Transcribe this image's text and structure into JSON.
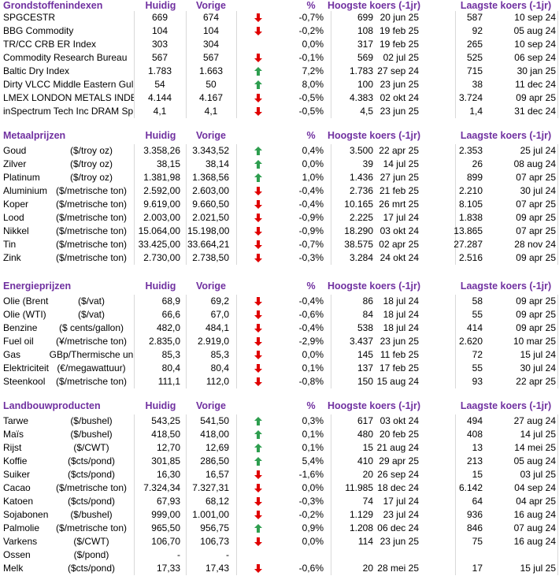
{
  "sections": [
    {
      "title": "Grondstoffenindexen",
      "headers": {
        "current": "Huidig",
        "previous": "Vorige",
        "pct": "%",
        "high": "Hoogste koers (-1jr)",
        "low": "Laagste koers (-1jr)"
      },
      "rows": [
        {
          "name": "SPGCESTR",
          "current": "669",
          "previous": "674",
          "arrow": "down",
          "pct": "-0,7%",
          "high": "699",
          "high_date": "20 jun 25",
          "low": "587",
          "low_date": "10 sep 24"
        },
        {
          "name": "BBG Commodity",
          "current": "104",
          "previous": "104",
          "arrow": "down",
          "pct": "-0,2%",
          "high": "108",
          "high_date": "19 feb 25",
          "low": "92",
          "low_date": "05 aug 24"
        },
        {
          "name": "TR/CC CRB ER Index",
          "current": "303",
          "previous": "304",
          "arrow": null,
          "pct": "0,0%",
          "high": "317",
          "high_date": "19 feb 25",
          "low": "265",
          "low_date": "10 sep 24"
        },
        {
          "name": "Commodity Research Bureau",
          "current": "567",
          "previous": "567",
          "arrow": "down",
          "pct": "-0,1%",
          "high": "569",
          "high_date": "02 jul 25",
          "low": "525",
          "low_date": "06 sep 24"
        },
        {
          "name": "Baltic Dry Index",
          "current": "1.783",
          "previous": "1.663",
          "arrow": "up",
          "pct": "7,2%",
          "high": "1.783",
          "high_date": "27 sep 24",
          "low": "715",
          "low_date": "30 jan 25"
        },
        {
          "name": "Dirty VLCC Middle Eastern Gul",
          "current": "54",
          "previous": "50",
          "arrow": "up",
          "pct": "8,0%",
          "high": "100",
          "high_date": "23 jun 25",
          "low": "38",
          "low_date": "11 dec 24"
        },
        {
          "name": "LMEX LONDON METALS INDE",
          "current": "4.144",
          "previous": "4.167",
          "arrow": "down",
          "pct": "-0,5%",
          "high": "4.383",
          "high_date": "02 okt 24",
          "low": "3.724",
          "low_date": "09 apr 25"
        },
        {
          "name": "inSpectrum Tech Inc DRAM Sp",
          "current": "4,1",
          "previous": "4,1",
          "arrow": "down",
          "pct": "-0,5%",
          "high": "4,5",
          "high_date": "23 jun 25",
          "low": "1,4",
          "low_date": "31 dec 24"
        }
      ]
    },
    {
      "title": "Metaalprijzen",
      "headers": {
        "current": "Huidig",
        "previous": "Vorige",
        "pct": "%",
        "high": "Hoogste koers (-1jr)",
        "low": "Laagste koers (-1jr)"
      },
      "rows": [
        {
          "name": "Goud",
          "unit": "($/troy oz)",
          "current": "3.358,26",
          "previous": "3.343,52",
          "arrow": "up",
          "pct": "0,4%",
          "high": "3.500",
          "high_date": "22 apr 25",
          "low": "2.353",
          "low_date": "25 jul 24"
        },
        {
          "name": "Zilver",
          "unit": "($/troy oz)",
          "current": "38,15",
          "previous": "38,14",
          "arrow": "up",
          "pct": "0,0%",
          "high": "39",
          "high_date": "14 jul 25",
          "low": "26",
          "low_date": "08 aug 24"
        },
        {
          "name": "Platinum",
          "unit": "($/troy oz)",
          "current": "1.381,98",
          "previous": "1.368,56",
          "arrow": "up",
          "pct": "1,0%",
          "high": "1.436",
          "high_date": "27 jun 25",
          "low": "899",
          "low_date": "07 apr 25"
        },
        {
          "name": "Aluminium",
          "unit": "($/metrische ton)",
          "current": "2.592,00",
          "previous": "2.603,00",
          "arrow": "down",
          "pct": "-0,4%",
          "high": "2.736",
          "high_date": "21 feb 25",
          "low": "2.210",
          "low_date": "30 jul 24"
        },
        {
          "name": "Koper",
          "unit": "($/metrische ton)",
          "current": "9.619,00",
          "previous": "9.660,50",
          "arrow": "down",
          "pct": "-0,4%",
          "high": "10.165",
          "high_date": "26 mrt 25",
          "low": "8.105",
          "low_date": "07 apr 25"
        },
        {
          "name": "Lood",
          "unit": "($/metrische ton)",
          "current": "2.003,00",
          "previous": "2.021,50",
          "arrow": "down",
          "pct": "-0,9%",
          "high": "2.225",
          "high_date": "17 jul 24",
          "low": "1.838",
          "low_date": "09 apr 25"
        },
        {
          "name": "Nikkel",
          "unit": "($/metrische ton)",
          "current": "15.064,00",
          "previous": "15.198,00",
          "arrow": "down",
          "pct": "-0,9%",
          "high": "18.290",
          "high_date": "03 okt 24",
          "low": "13.865",
          "low_date": "07 apr 25"
        },
        {
          "name": "Tin",
          "unit": "($/metrische ton)",
          "current": "33.425,00",
          "previous": "33.664,21",
          "arrow": "down",
          "pct": "-0,7%",
          "high": "38.575",
          "high_date": "02 apr 25",
          "low": "27.287",
          "low_date": "28 nov 24"
        },
        {
          "name": "Zink",
          "unit": "($/metrische ton)",
          "current": "2.730,00",
          "previous": "2.738,50",
          "arrow": "down",
          "pct": "-0,3%",
          "high": "3.284",
          "high_date": "24 okt 24",
          "low": "2.516",
          "low_date": "09 apr 25"
        }
      ]
    },
    {
      "title": "Energieprijzen",
      "headers": {
        "current": "Huidig",
        "previous": "Vorige",
        "pct": "%",
        "high": "Hoogste koers (-1jr)",
        "low": "Laagste koers (-1jr)"
      },
      "rows": [
        {
          "name": "Olie (Brent",
          "unit": "($/vat)",
          "current": "68,9",
          "previous": "69,2",
          "arrow": "down",
          "pct": "-0,4%",
          "high": "86",
          "high_date": "18 jul 24",
          "low": "58",
          "low_date": "09 apr 25"
        },
        {
          "name": "Olie (WTI)",
          "unit": "($/vat)",
          "current": "66,6",
          "previous": "67,0",
          "arrow": "down",
          "pct": "-0,6%",
          "high": "84",
          "high_date": "18 jul 24",
          "low": "55",
          "low_date": "09 apr 25"
        },
        {
          "name": "Benzine",
          "unit": "($ cents/gallon)",
          "current": "482,0",
          "previous": "484,1",
          "arrow": "down",
          "pct": "-0,4%",
          "high": "538",
          "high_date": "18 jul 24",
          "low": "414",
          "low_date": "09 apr 25"
        },
        {
          "name": "Fuel oil",
          "unit": "(¥/metrische ton)",
          "current": "2.835,0",
          "previous": "2.919,0",
          "arrow": "down",
          "pct": "-2,9%",
          "high": "3.437",
          "high_date": "23 jun 25",
          "low": "2.620",
          "low_date": "10 mar 25"
        },
        {
          "name": "Gas",
          "unit": "GBp/Thermische un",
          "current": "85,3",
          "previous": "85,3",
          "arrow": "down",
          "pct": "0,0%",
          "high": "145",
          "high_date": "11 feb 25",
          "low": "72",
          "low_date": "15 jul 24"
        },
        {
          "name": "Elektriciteit",
          "unit": "(€/megawattuur)",
          "current": "80,4",
          "previous": "80,4",
          "arrow": "down",
          "pct": "0,1%",
          "high": "137",
          "high_date": "17 feb 25",
          "low": "55",
          "low_date": "30 jul 24"
        },
        {
          "name": "Steenkool",
          "unit": "($/metrische ton)",
          "current": "111,1",
          "previous": "112,0",
          "arrow": "down",
          "pct": "-0,8%",
          "high": "150",
          "high_date": "15 aug 24",
          "low": "93",
          "low_date": "22 apr 25"
        }
      ]
    },
    {
      "title": "Landbouwproducten",
      "headers": {
        "current": "Huidig",
        "previous": "Vorige",
        "pct": "%",
        "high": "Hoogste koers (-1jr)",
        "low": "Laagste koers (-1jr)"
      },
      "rows": [
        {
          "name": "Tarwe",
          "unit": "($/bushel)",
          "current": "543,25",
          "previous": "541,50",
          "arrow": "up",
          "pct": "0,3%",
          "high": "617",
          "high_date": "03 okt 24",
          "low": "494",
          "low_date": "27 aug 24"
        },
        {
          "name": "Maïs",
          "unit": "($/bushel)",
          "current": "418,50",
          "previous": "418,00",
          "arrow": "up",
          "pct": "0,1%",
          "high": "480",
          "high_date": "20 feb 25",
          "low": "408",
          "low_date": "14 jul 25"
        },
        {
          "name": "Rijst",
          "unit": "($/CWT)",
          "current": "12,70",
          "previous": "12,69",
          "arrow": "up",
          "pct": "0,1%",
          "high": "15",
          "high_date": "21 aug 24",
          "low": "13",
          "low_date": "14 mei 25"
        },
        {
          "name": "Koffie",
          "unit": "($cts/pond)",
          "current": "301,85",
          "previous": "286,50",
          "arrow": "up",
          "pct": "5,4%",
          "high": "410",
          "high_date": "29 apr 25",
          "low": "213",
          "low_date": "05 aug 24"
        },
        {
          "name": "Suiker",
          "unit": "($cts/pond)",
          "current": "16,30",
          "previous": "16,57",
          "arrow": "down",
          "pct": "-1,6%",
          "high": "20",
          "high_date": "26 sep 24",
          "low": "15",
          "low_date": "03 jul 25"
        },
        {
          "name": "Cacao",
          "unit": "($/metrische ton)",
          "current": "7.324,34",
          "previous": "7.327,31",
          "arrow": "down",
          "pct": "0,0%",
          "high": "11.985",
          "high_date": "18 dec 24",
          "low": "6.142",
          "low_date": "04 sep 24"
        },
        {
          "name": "Katoen",
          "unit": "($cts/pond)",
          "current": "67,93",
          "previous": "68,12",
          "arrow": "down",
          "pct": "-0,3%",
          "high": "74",
          "high_date": "17 jul 24",
          "low": "64",
          "low_date": "04 apr 25"
        },
        {
          "name": "Sojabonen",
          "unit": "($/bushel)",
          "current": "999,00",
          "previous": "1.001,00",
          "arrow": "down",
          "pct": "-0,2%",
          "high": "1.129",
          "high_date": "23 jul 24",
          "low": "936",
          "low_date": "16 aug 24"
        },
        {
          "name": "Palmolie",
          "unit": "($/metrische ton)",
          "current": "965,50",
          "previous": "956,75",
          "arrow": "up",
          "pct": "0,9%",
          "high": "1.208",
          "high_date": "06 dec 24",
          "low": "846",
          "low_date": "07 aug 24"
        },
        {
          "name": "Varkens",
          "unit": "($/CWT)",
          "current": "106,70",
          "previous": "106,73",
          "arrow": "down",
          "pct": "0,0%",
          "high": "114",
          "high_date": "23 jun 25",
          "low": "75",
          "low_date": "16 aug 24"
        },
        {
          "name": "Ossen",
          "unit": "($/pond)",
          "current": "-",
          "previous": "-",
          "arrow": null,
          "pct": null,
          "high": null,
          "high_date": null,
          "low": null,
          "low_date": null
        },
        {
          "name": "Melk",
          "unit": "($cts/pond)",
          "current": "17,33",
          "previous": "17,43",
          "arrow": "down",
          "pct": "-0,6%",
          "high": "20",
          "high_date": "28 mei 25",
          "low": "17",
          "low_date": "15 jul 25"
        }
      ]
    }
  ]
}
